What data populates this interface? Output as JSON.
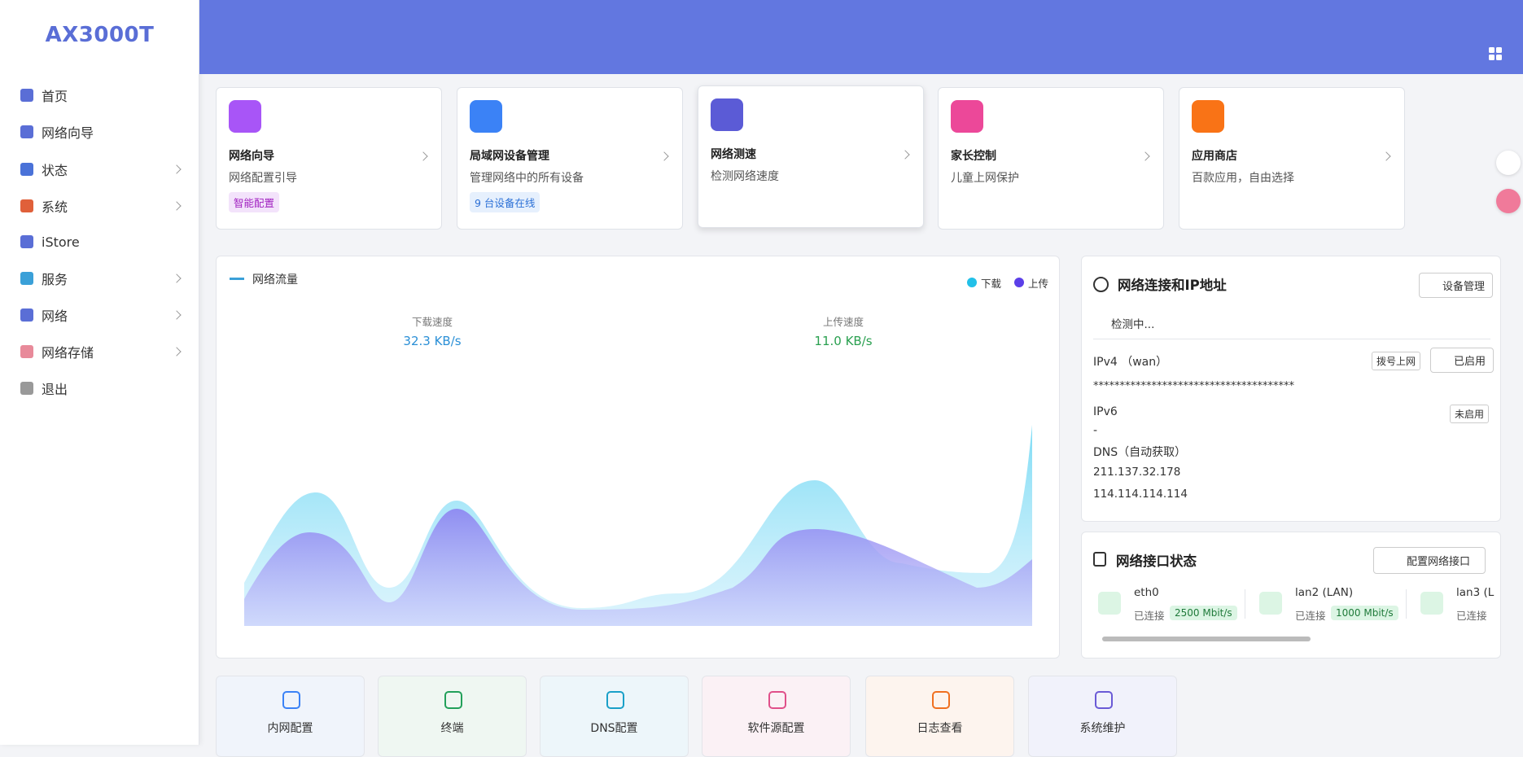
{
  "sidebar": {
    "logo": "AX3000T",
    "menu": [
      "首页",
      "网络向导",
      "状态",
      "系统",
      "iStore",
      "服务",
      "网络",
      "网络存储",
      "退出"
    ]
  },
  "cards": [
    {
      "title": "网络向导",
      "desc": "网络配置引导",
      "badge": "智能配置"
    },
    {
      "title": "局域网设备管理",
      "desc": "管理网络中的所有设备",
      "badge": "9 台设备在线"
    },
    {
      "title": "网络测速",
      "desc": "检测网络速度"
    },
    {
      "title": "家长控制",
      "desc": "儿童上网保护"
    },
    {
      "title": "应用商店",
      "desc": "百款应用，自由选择"
    }
  ],
  "traffic": {
    "title": "网络流量",
    "legend": [
      "下载",
      "上传"
    ],
    "download": {
      "label": "下载速度",
      "value": "32.3 KB/s"
    },
    "upload": {
      "label": "上传速度",
      "value": "11.0 KB/s"
    }
  },
  "connection": {
    "title": "网络连接和IP地址",
    "button": "设备管理",
    "status": "检测中...",
    "ipv4": {
      "label": "IPv4 （wan）",
      "tags": [
        "拨号上网",
        "已启用"
      ],
      "value": "**************************************"
    },
    "ipv6": {
      "label": "IPv6",
      "tag": "未启用",
      "value": "-"
    },
    "dns": {
      "label": "DNS（自动获取）",
      "servers": [
        "211.137.32.178",
        "114.114.114.114"
      ]
    }
  },
  "interfaces": {
    "title": "网络接口状态",
    "button": "配置网络接口",
    "items": [
      {
        "name": "eth0",
        "status": "已连接",
        "speed": "2500 Mbit/s"
      },
      {
        "name": "lan2 (LAN)",
        "status": "已连接",
        "speed": "1000 Mbit/s"
      },
      {
        "name": "lan3 (L",
        "status": "已连接"
      }
    ]
  },
  "tools": [
    "内网配置",
    "终端",
    "DNS配置",
    "软件源配置",
    "日志查看",
    "系统维护"
  ]
}
